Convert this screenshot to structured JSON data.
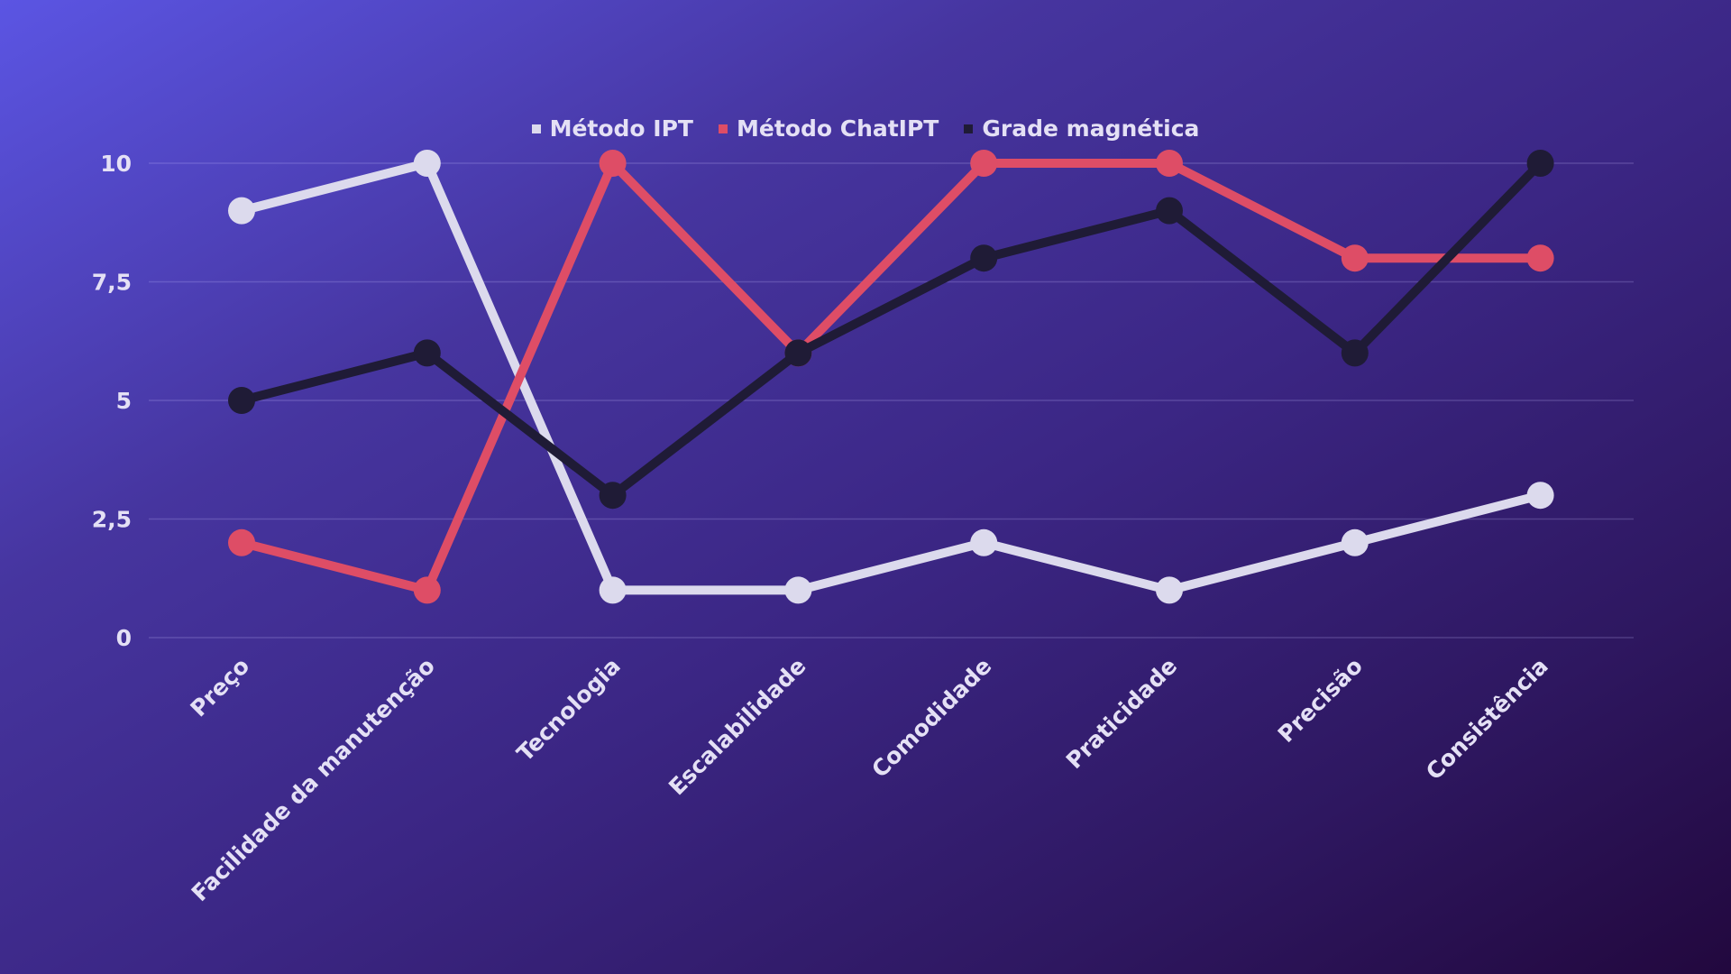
{
  "chart_data": {
    "type": "line",
    "title": "",
    "xlabel": "",
    "ylabel": "",
    "categories": [
      "Preço",
      "Facilidade da manutenção",
      "Tecnologia",
      "Escalabilidade",
      "Comodidade",
      "Praticidade",
      "Precisão",
      "Consistência"
    ],
    "series": [
      {
        "name": "Método IPT",
        "color": "#dcdaed",
        "values": [
          9,
          10,
          1,
          1,
          2,
          1,
          2,
          3
        ]
      },
      {
        "name": "Método ChatIPT",
        "color": "#de4d66",
        "values": [
          2,
          1,
          10,
          6,
          10,
          10,
          8,
          8
        ]
      },
      {
        "name": "Grade magnética",
        "color": "#1f1b36",
        "values": [
          5,
          6,
          3,
          6,
          8,
          9,
          6,
          10
        ]
      }
    ],
    "ylim": [
      0,
      10
    ],
    "yticks": [
      0,
      2.5,
      5,
      7.5,
      10
    ],
    "ytick_labels": [
      "0",
      "2,5",
      "5",
      "7,5",
      "10"
    ],
    "grid": true,
    "legend_position": "top-center"
  }
}
